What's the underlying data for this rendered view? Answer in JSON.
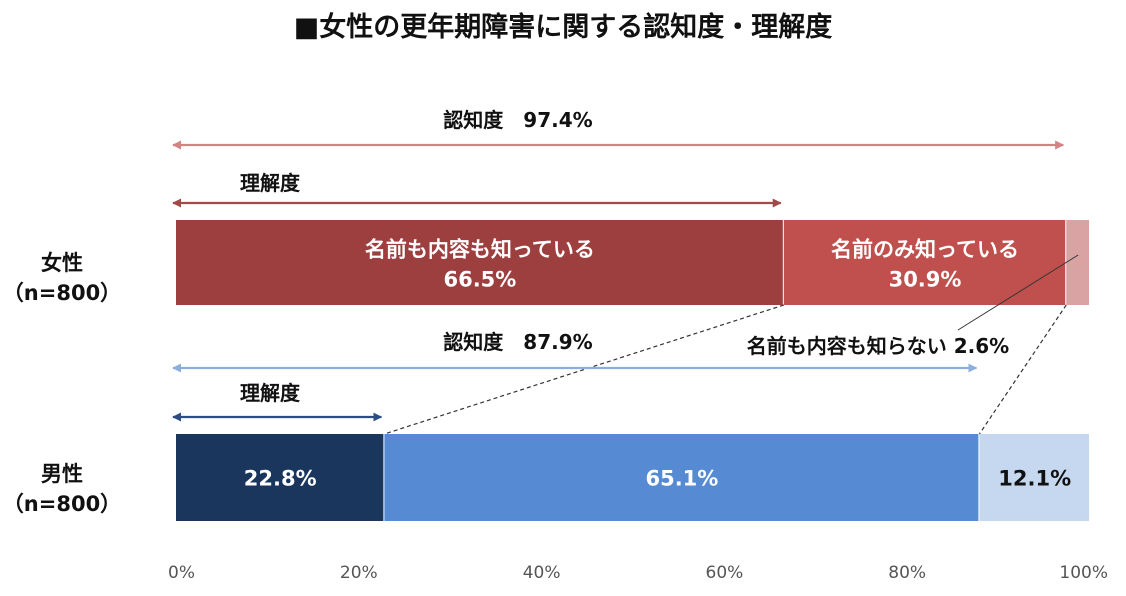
{
  "chart_data": {
    "type": "bar",
    "orientation": "horizontal",
    "stacked": true,
    "title": "■女性の更年期障害に関する認知度・理解度",
    "categories": [
      {
        "line1": "女性",
        "line2": "（n=800）"
      },
      {
        "line1": "男性",
        "line2": "（n=800）"
      }
    ],
    "xlim": [
      0,
      100
    ],
    "x_ticks": [
      "0%",
      "20%",
      "40%",
      "60%",
      "80%",
      "100%"
    ],
    "series": [
      {
        "name": "名前も内容も知っている",
        "values": [
          66.5,
          22.8
        ],
        "colors": [
          "#9E3F3F",
          "#1A365D"
        ]
      },
      {
        "name": "名前のみ知っている",
        "values": [
          30.9,
          65.1
        ],
        "colors": [
          "#C0504D",
          "#568BD3"
        ]
      },
      {
        "name": "名前も内容も知らない",
        "values": [
          2.6,
          12.1
        ],
        "colors": [
          "#D9A3A3",
          "#C5D8F0"
        ]
      }
    ],
    "bar_labels": [
      [
        {
          "line1": "名前も内容も知っている",
          "line2": "66.5%",
          "color": "#ffffff"
        },
        {
          "line1": "名前のみ知っている",
          "line2": "30.9%",
          "color": "#ffffff"
        },
        {
          "line1": "",
          "line2": "",
          "color": "#ffffff"
        }
      ],
      [
        {
          "line1": "",
          "line2": "22.8%",
          "color": "#ffffff"
        },
        {
          "line1": "",
          "line2": "65.1%",
          "color": "#ffffff"
        },
        {
          "line1": "",
          "line2": "12.1%",
          "color": "#111111"
        }
      ]
    ],
    "annotations": {
      "female": [
        {
          "label": "認知度　97.4%",
          "value": 97.4,
          "color": "#D48383"
        },
        {
          "label": "理解度",
          "value": 66.5,
          "color": "#A04A4A"
        }
      ],
      "male": [
        {
          "label": "認知度　87.9%",
          "value": 87.9,
          "color": "#8CAEDC"
        },
        {
          "label": "理解度",
          "value": 22.8,
          "color": "#2B4C84"
        }
      ],
      "callout": "名前も内容も知らない 2.6%"
    }
  }
}
